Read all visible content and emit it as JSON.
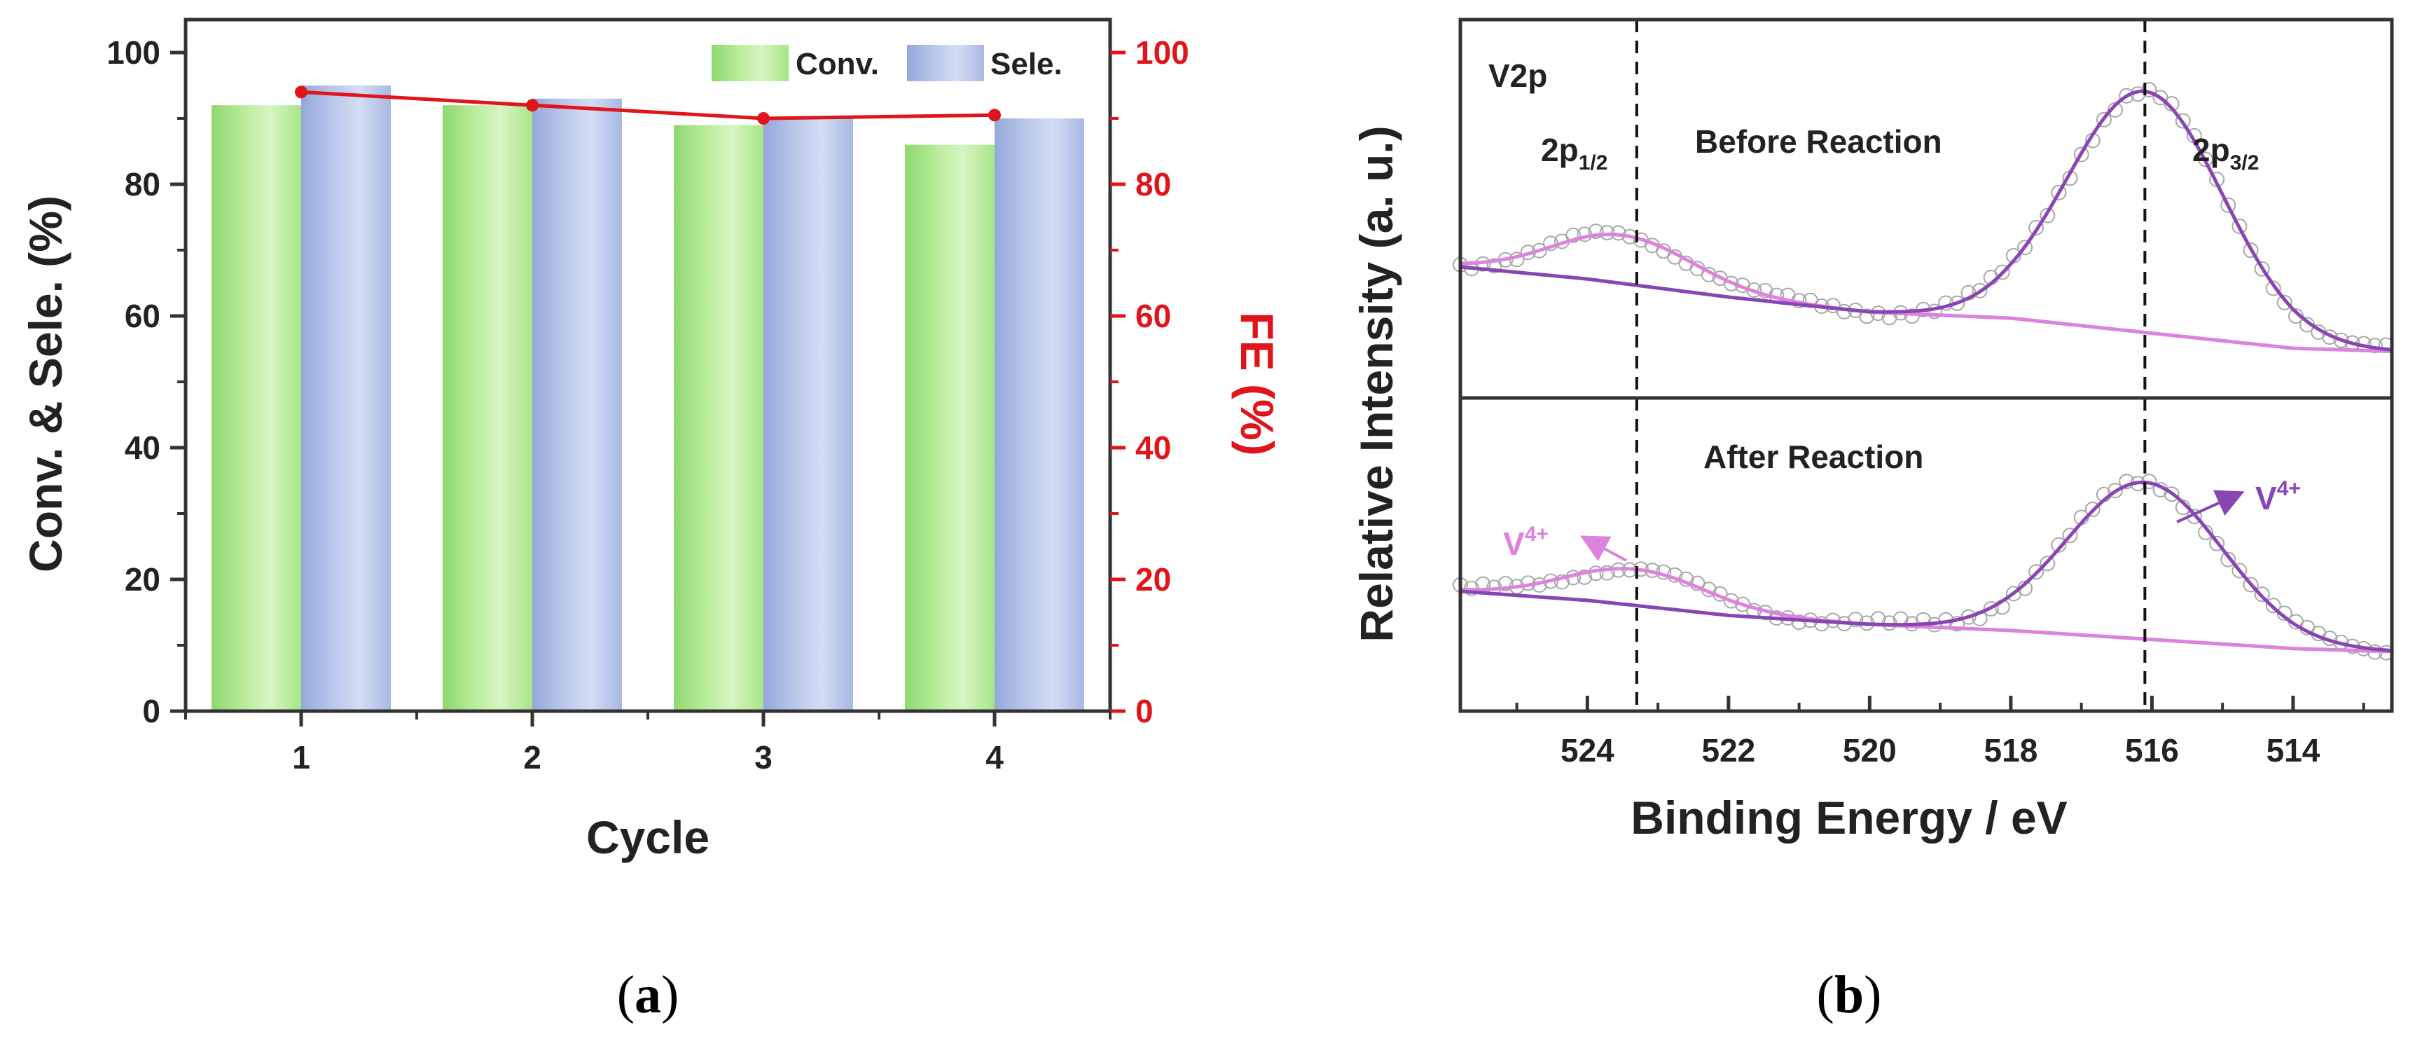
{
  "colors": {
    "conv_fill": "#b8ec9a",
    "conv_fill_dark": "#8fd870",
    "sele_fill": "#b9c7ea",
    "sele_fill_dark": "#95a8da",
    "fe_line": "#e0151b",
    "fe_axis": "#e0151b",
    "before_fit": "#8a45b4",
    "pink_fit": "#dd82dd",
    "baseline": "#7fe0ec",
    "axis": "#333333",
    "raw_points": "#a7a7a7"
  },
  "chart_data": [
    {
      "id": "a",
      "type": "bar",
      "caption": "a",
      "xlabel": "Cycle",
      "ylabel": "Conv. & Sele. (%)",
      "y2label": "FE (%)",
      "categories": [
        "1",
        "2",
        "3",
        "4"
      ],
      "ylim": [
        0,
        105
      ],
      "y2lim": [
        0,
        105
      ],
      "yticks": [
        0,
        20,
        40,
        60,
        80,
        100
      ],
      "y2ticks": [
        0,
        20,
        40,
        60,
        80,
        100
      ],
      "legend": {
        "position": "top-right",
        "entries": [
          "Conv.",
          "Sele."
        ]
      },
      "series": [
        {
          "name": "Conv.",
          "kind": "bar",
          "values": [
            92,
            92,
            89,
            86
          ]
        },
        {
          "name": "Sele.",
          "kind": "bar",
          "values": [
            95,
            93,
            90,
            90
          ]
        },
        {
          "name": "FE",
          "kind": "line",
          "axis": "right",
          "values": [
            94,
            92,
            90,
            90.5
          ]
        }
      ]
    },
    {
      "id": "b",
      "type": "line",
      "caption": "b",
      "xlabel": "Binding Energy / eV",
      "ylabel": "Relative Intensity (a. u.)",
      "xlim": [
        525.8,
        512.6
      ],
      "xticks": [
        524,
        522,
        520,
        518,
        516,
        514
      ],
      "vlines": [
        523.3,
        516.1
      ],
      "panels": [
        {
          "name": "Before Reaction",
          "element_label": "V2p",
          "peak_labels": [
            {
              "base": "2p",
              "sub": "1/2",
              "energy": 524.3
            },
            {
              "base": "2p",
              "sub": "3/2",
              "energy": 515.0
            }
          ],
          "baseline": {
            "x": [
              525.8,
              524,
              522,
              520,
              518,
              516,
              514,
              512.6
            ],
            "y": [
              0.3,
              0.26,
              0.2,
              0.15,
              0.13,
              0.08,
              0.03,
              0.02
            ]
          },
          "fit_peaks": [
            {
              "center": 523.5,
              "height": 0.16,
              "width": 1.0,
              "color_key": "pink_fit"
            },
            {
              "center": 516.1,
              "height": 0.8,
              "width": 1.1,
              "color_key": "before_fit"
            }
          ]
        },
        {
          "name": "After Reaction",
          "peak_labels": [
            {
              "base": "V",
              "sup": "4+",
              "energy": 524.7,
              "side": "left"
            },
            {
              "base": "V",
              "sup": "4+",
              "energy": 514.6,
              "side": "right"
            }
          ],
          "baseline": {
            "x": [
              525.8,
              524,
              522,
              520,
              518,
              516,
              514,
              512.6
            ],
            "y": [
              0.2,
              0.17,
              0.12,
              0.09,
              0.07,
              0.04,
              0.01,
              0.0
            ]
          },
          "fit_peaks": [
            {
              "center": 523.3,
              "height": 0.12,
              "width": 1.0,
              "color_key": "pink_fit"
            },
            {
              "center": 516.1,
              "height": 0.52,
              "width": 1.1,
              "color_key": "before_fit"
            }
          ]
        }
      ]
    }
  ]
}
